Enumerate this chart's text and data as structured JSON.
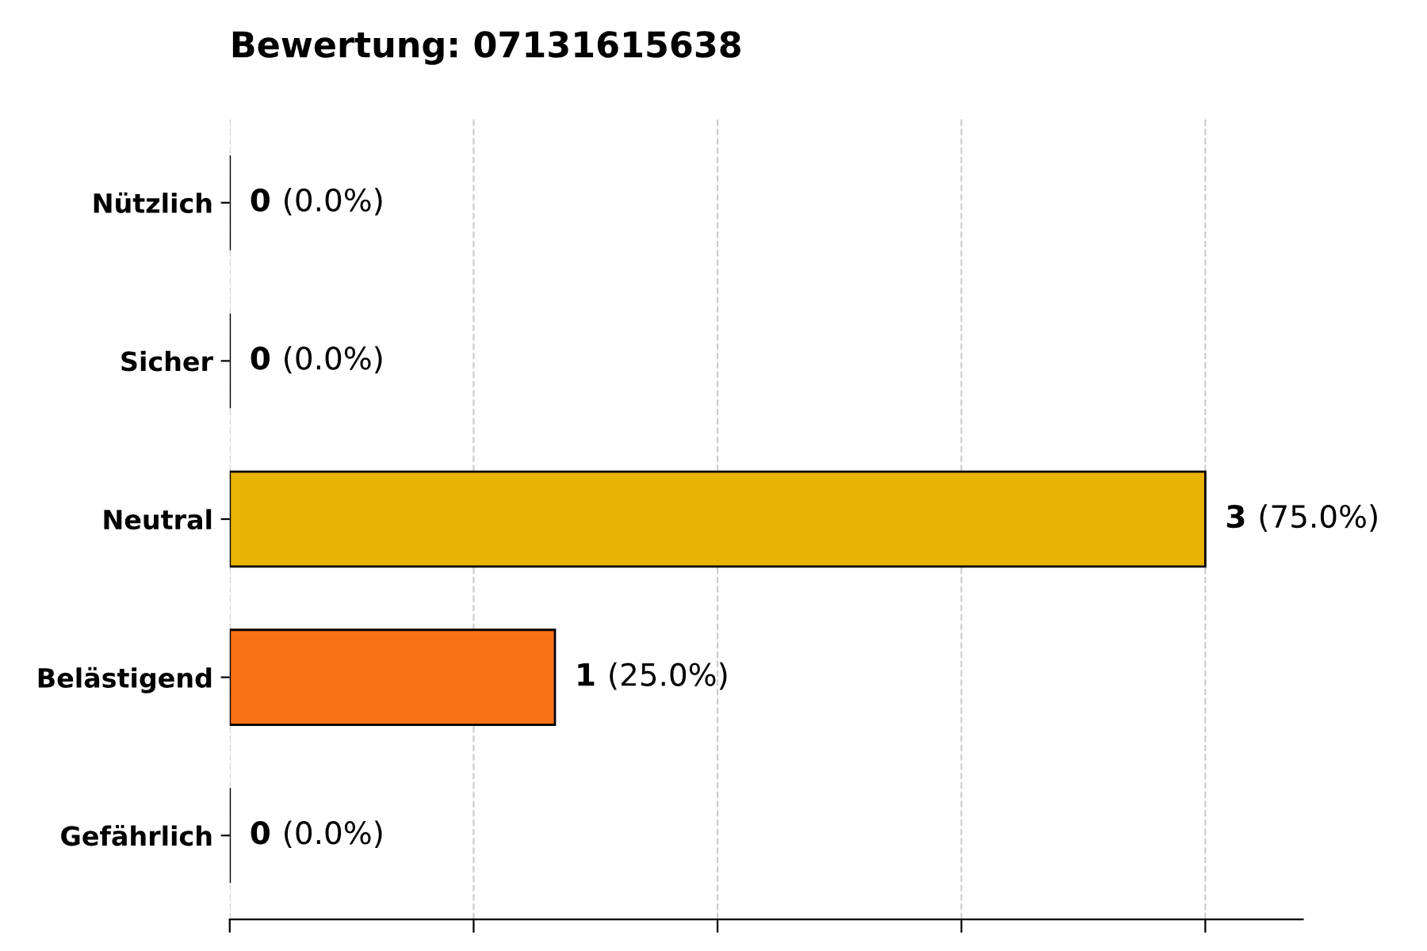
{
  "chart_data": {
    "type": "bar",
    "orientation": "horizontal",
    "title": "Bewertung: 07131615638",
    "categories": [
      "Nützlich",
      "Sicher",
      "Neutral",
      "Belästigend",
      "Gefährlich"
    ],
    "values": [
      0,
      0,
      3,
      1,
      0
    ],
    "colors": [
      null,
      null,
      "#eab308",
      "#f97316",
      null
    ],
    "value_labels": [
      "0 (0.0%)",
      "0 (0.0%)",
      "3 (75.0%)",
      "1 (25.0%)",
      "0 (0.0%)"
    ],
    "xlim": [
      0,
      3.3
    ],
    "xticks": [
      {
        "value": 0,
        "label": null
      },
      {
        "value": 0.75,
        "label": null
      },
      {
        "value": 1.5,
        "label": null
      },
      {
        "value": 2.25,
        "label": null
      },
      {
        "value": 3,
        "label": null
      }
    ],
    "tick_labels": "y",
    "grid": "x"
  }
}
